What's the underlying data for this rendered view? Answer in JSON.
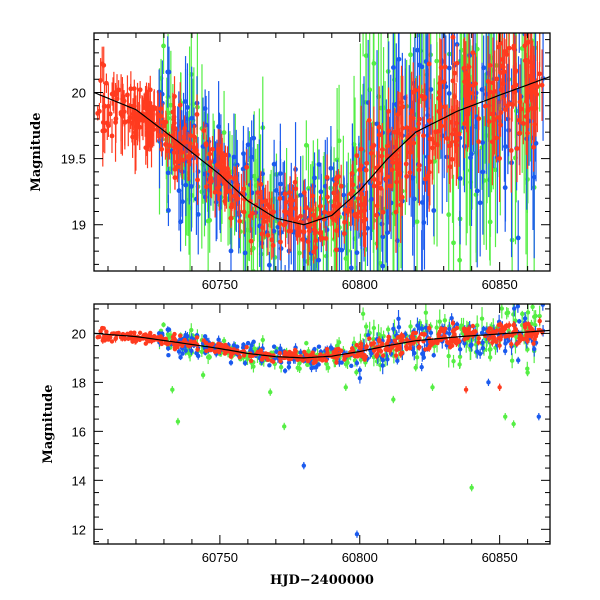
{
  "chart_data": [
    {
      "type": "scatter",
      "panel": "top",
      "xlabel": "",
      "ylabel": "Magnitude",
      "xlim": [
        60705,
        60868
      ],
      "ylim": [
        20.45,
        18.65
      ],
      "y_inverted": true,
      "x_ticks": [
        60750,
        60800,
        60850
      ],
      "x_tick_labels": [
        "60750",
        "60800",
        "60850"
      ],
      "y_ticks": [
        19,
        19.5,
        20
      ],
      "y_tick_labels": [
        "19",
        "19.5",
        "20"
      ],
      "series_colors": {
        "red": "#ff3b1f",
        "green": "#55ee44",
        "blue": "#1a5aee"
      },
      "model_curve": {
        "color": "#000000",
        "x": [
          60705,
          60720,
          60735,
          60750,
          60760,
          60770,
          60780,
          60790,
          60800,
          60810,
          60820,
          60835,
          60850,
          60868
        ],
        "y": [
          20.0,
          19.87,
          19.63,
          19.38,
          19.18,
          19.05,
          19.0,
          19.07,
          19.26,
          19.5,
          19.7,
          19.86,
          19.98,
          20.12
        ]
      },
      "series": [
        {
          "color": "red",
          "x_range": [
            60706,
            60866
          ],
          "values_follow": "model_curve",
          "scatter_mag": 0.12,
          "error_bar_mag": 0.12
        },
        {
          "color": "green",
          "x_range": [
            60728,
            60866
          ],
          "values_follow": "model_curve",
          "scatter_mag": 0.3,
          "error_bar_mag": 0.35
        },
        {
          "color": "blue",
          "x_range": [
            60728,
            60866
          ],
          "values_follow": "model_curve",
          "scatter_mag": 0.25,
          "error_bar_mag": 0.25
        }
      ]
    },
    {
      "type": "scatter",
      "panel": "bottom",
      "xlabel": "HJD−2400000",
      "ylabel": "Magnitude",
      "xlim": [
        60705,
        60868
      ],
      "ylim": [
        21.2,
        11.4
      ],
      "y_inverted": true,
      "x_ticks": [
        60750,
        60800,
        60850
      ],
      "x_tick_labels": [
        "60750",
        "60800",
        "60850"
      ],
      "y_ticks": [
        12,
        14,
        16,
        18,
        20
      ],
      "y_tick_labels": [
        "12",
        "14",
        "16",
        "18",
        "20"
      ],
      "model_curve_ref": "top",
      "outliers": [
        {
          "color": "blue",
          "x": 60799,
          "y": 11.8
        },
        {
          "color": "blue",
          "x": 60780,
          "y": 14.6
        },
        {
          "color": "green",
          "x": 60735,
          "y": 16.4
        },
        {
          "color": "green",
          "x": 60773,
          "y": 16.2
        },
        {
          "color": "green",
          "x": 60840,
          "y": 13.7
        },
        {
          "color": "green",
          "x": 60852,
          "y": 16.6
        },
        {
          "color": "green",
          "x": 60855,
          "y": 16.3
        },
        {
          "color": "blue",
          "x": 60864,
          "y": 16.6
        },
        {
          "color": "green",
          "x": 60733,
          "y": 17.7
        },
        {
          "color": "green",
          "x": 60768,
          "y": 17.6
        },
        {
          "color": "green",
          "x": 60795,
          "y": 17.8
        },
        {
          "color": "green",
          "x": 60812,
          "y": 17.3
        },
        {
          "color": "red",
          "x": 60838,
          "y": 17.7
        },
        {
          "color": "green",
          "x": 60826,
          "y": 17.8
        },
        {
          "color": "blue",
          "x": 60846,
          "y": 18.0
        },
        {
          "color": "green",
          "x": 60860,
          "y": 18.4
        },
        {
          "color": "red",
          "x": 60850,
          "y": 17.8
        },
        {
          "color": "green",
          "x": 60744,
          "y": 18.3
        },
        {
          "color": "blue",
          "x": 60800,
          "y": 18.5
        },
        {
          "color": "green",
          "x": 60820,
          "y": 18.6
        }
      ]
    }
  ]
}
